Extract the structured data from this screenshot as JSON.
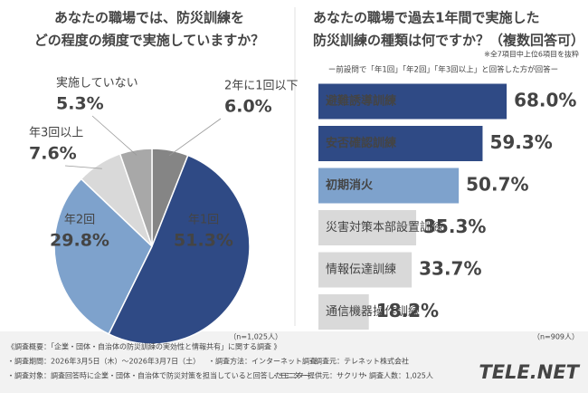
{
  "chart_data": [
    {
      "type": "pie",
      "title_lines": [
        "あなたの職場では、防災訓練を",
        "どの程度の頻度で実施していますか？"
      ],
      "categories": [
        "2年に1回以下",
        "年1回",
        "年2回",
        "年3回以上",
        "実施していない"
      ],
      "values": [
        6.0,
        51.3,
        29.8,
        7.6,
        5.3
      ],
      "value_labels": [
        "6.0%",
        "51.3%",
        "29.8%",
        "7.6%",
        "5.3%"
      ],
      "colors": [
        "#858585",
        "#2f4a85",
        "#7ea2cc",
        "#d9d9d9",
        "#a8a8a8"
      ],
      "note": "（n=1,025人）"
    },
    {
      "type": "hbar",
      "title_lines": [
        "あなたの職場で過去1年間で実施した",
        "防災訓練の種類は何ですか？（複数回答可）"
      ],
      "footnote": "※全7項目中上位6項目を抜粋",
      "subtitle": "ー前設問で「年1回」「年2回」「年3回以上」と回答した方が回答ー",
      "categories": [
        "避難誘導訓練",
        "安否確認訓練",
        "初期消火",
        "災害対策本部設置訓練",
        "情報伝達訓練",
        "通信機器操作訓練"
      ],
      "values": [
        68.0,
        59.3,
        50.7,
        35.3,
        33.7,
        18.2
      ],
      "value_labels": [
        "68.0%",
        "59.3%",
        "50.7%",
        "35.3%",
        "33.7%",
        "18.2%"
      ],
      "colors": [
        "#2f4a85",
        "#2f4a85",
        "#7ea2cc",
        "#d9d9d9",
        "#d9d9d9",
        "#d9d9d9"
      ],
      "note": "（n=909人）"
    }
  ],
  "footer": {
    "heading": "《調査概要：「企業・団体・自治体の防災訓練の実効性と情報共有」に関する調査 》",
    "rows": [
      [
        "・調査期間：2026年3月5日（木）〜2026年3月7日（土）",
        "・調査方法：インターネット調査",
        "・調査元：テレネット株式会社"
      ],
      [
        "・調査対象：調査回答時に企業・団体・自治体で防災対策を担当していると回答したモニター",
        "・モニター提供元：サクリサ",
        "・調査人数：1,025人"
      ]
    ],
    "logo": "TELE.NET"
  }
}
